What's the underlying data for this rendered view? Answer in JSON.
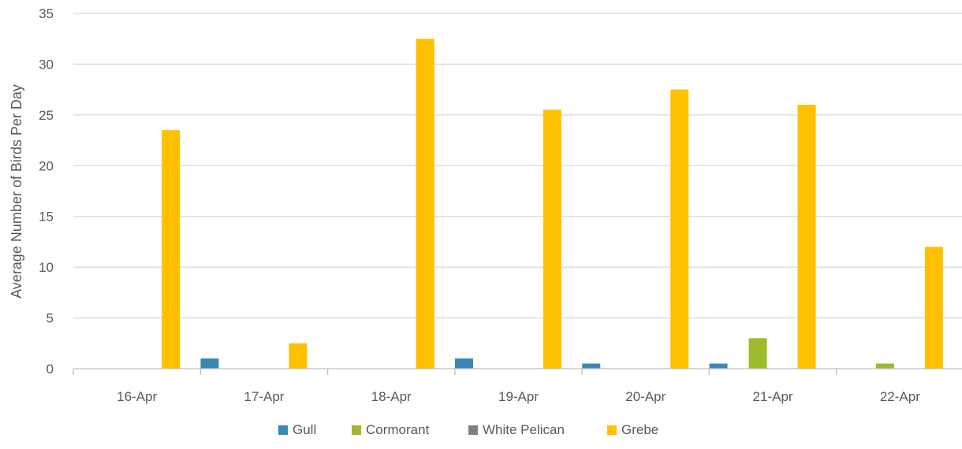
{
  "chart_data": {
    "type": "bar",
    "title": "",
    "xlabel": "",
    "ylabel": "Average Number of Birds Per Day",
    "categories": [
      "16-Apr",
      "17-Apr",
      "18-Apr",
      "19-Apr",
      "20-Apr",
      "21-Apr",
      "22-Apr"
    ],
    "series": [
      {
        "name": "Gull",
        "color": "#3a87b4",
        "values": [
          0,
          1,
          0,
          1,
          0.5,
          0.5,
          0
        ]
      },
      {
        "name": "Cormorant",
        "color": "#9bbb2a",
        "values": [
          0,
          0,
          0,
          0,
          0,
          3,
          0.5
        ]
      },
      {
        "name": "White Pelican",
        "color": "#7f7f7f",
        "values": [
          0,
          0,
          0,
          0,
          0,
          0,
          0
        ]
      },
      {
        "name": "Grebe",
        "color": "#ffc000",
        "values": [
          23.5,
          2.5,
          32.5,
          25.5,
          27.5,
          26,
          12
        ]
      }
    ],
    "ylim": [
      0,
      35
    ],
    "yticks": [
      0,
      5,
      10,
      15,
      20,
      25,
      30,
      35
    ],
    "grid": true,
    "legend_position": "bottom"
  }
}
